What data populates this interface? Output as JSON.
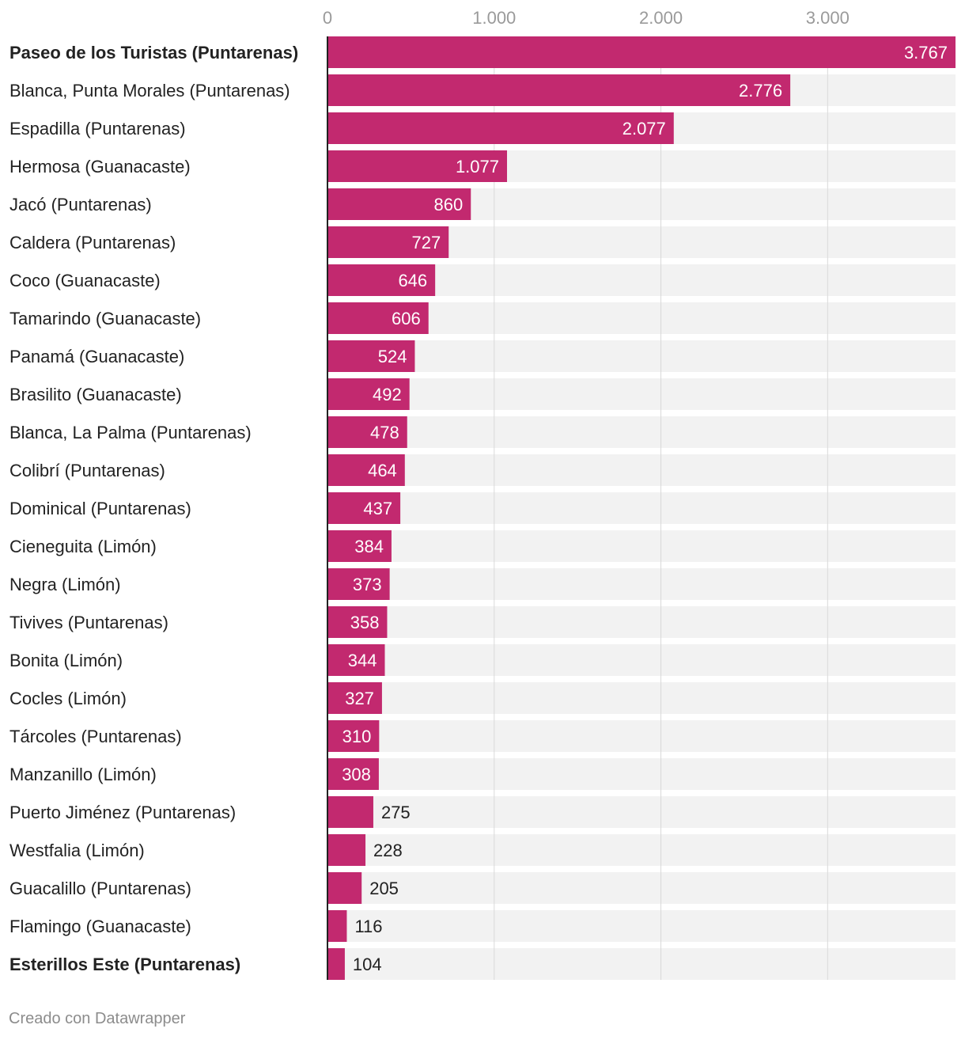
{
  "colors": {
    "bar": "#c2296f",
    "track": "#f2f2f2",
    "grid": "#d9d9d9",
    "axis": "#222222"
  },
  "chart_data": {
    "type": "bar",
    "orientation": "horizontal",
    "title": "",
    "xlabel": "",
    "ylabel": "",
    "xlim": [
      0,
      3767
    ],
    "ticks": [
      {
        "value": 0,
        "label": "0"
      },
      {
        "value": 1000,
        "label": "1.000"
      },
      {
        "value": 2000,
        "label": "2.000"
      },
      {
        "value": 3000,
        "label": "3.000"
      }
    ],
    "grid": true,
    "bars": [
      {
        "category": "Paseo de los Turistas (Puntarenas)",
        "value": 3767,
        "label": "3.767",
        "bold": true
      },
      {
        "category": "Blanca, Punta Morales (Puntarenas)",
        "value": 2776,
        "label": "2.776"
      },
      {
        "category": "Espadilla (Puntarenas)",
        "value": 2077,
        "label": "2.077"
      },
      {
        "category": "Hermosa (Guanacaste)",
        "value": 1077,
        "label": "1.077"
      },
      {
        "category": "Jacó (Puntarenas)",
        "value": 860,
        "label": "860"
      },
      {
        "category": "Caldera (Puntarenas)",
        "value": 727,
        "label": "727"
      },
      {
        "category": "Coco (Guanacaste)",
        "value": 646,
        "label": "646"
      },
      {
        "category": "Tamarindo (Guanacaste)",
        "value": 606,
        "label": "606"
      },
      {
        "category": "Panamá (Guanacaste)",
        "value": 524,
        "label": "524"
      },
      {
        "category": "Brasilito (Guanacaste)",
        "value": 492,
        "label": "492"
      },
      {
        "category": "Blanca, La Palma (Puntarenas)",
        "value": 478,
        "label": "478"
      },
      {
        "category": "Colibrí (Puntarenas)",
        "value": 464,
        "label": "464"
      },
      {
        "category": "Dominical (Puntarenas)",
        "value": 437,
        "label": "437"
      },
      {
        "category": "Cieneguita (Limón)",
        "value": 384,
        "label": "384"
      },
      {
        "category": "Negra (Limón)",
        "value": 373,
        "label": "373"
      },
      {
        "category": "Tivives (Puntarenas)",
        "value": 358,
        "label": "358"
      },
      {
        "category": "Bonita (Limón)",
        "value": 344,
        "label": "344"
      },
      {
        "category": "Cocles (Limón)",
        "value": 327,
        "label": "327"
      },
      {
        "category": "Tárcoles (Puntarenas)",
        "value": 310,
        "label": "310"
      },
      {
        "category": "Manzanillo (Limón)",
        "value": 308,
        "label": "308"
      },
      {
        "category": "Puerto Jiménez (Puntarenas)",
        "value": 275,
        "label": "275"
      },
      {
        "category": "Westfalia (Limón)",
        "value": 228,
        "label": "228"
      },
      {
        "category": "Guacalillo (Puntarenas)",
        "value": 205,
        "label": "205"
      },
      {
        "category": "Flamingo (Guanacaste)",
        "value": 116,
        "label": "116"
      },
      {
        "category": "Esterillos Este (Puntarenas)",
        "value": 104,
        "label": "104",
        "bold": true
      }
    ]
  },
  "footer": {
    "credit": "Creado con Datawrapper"
  }
}
